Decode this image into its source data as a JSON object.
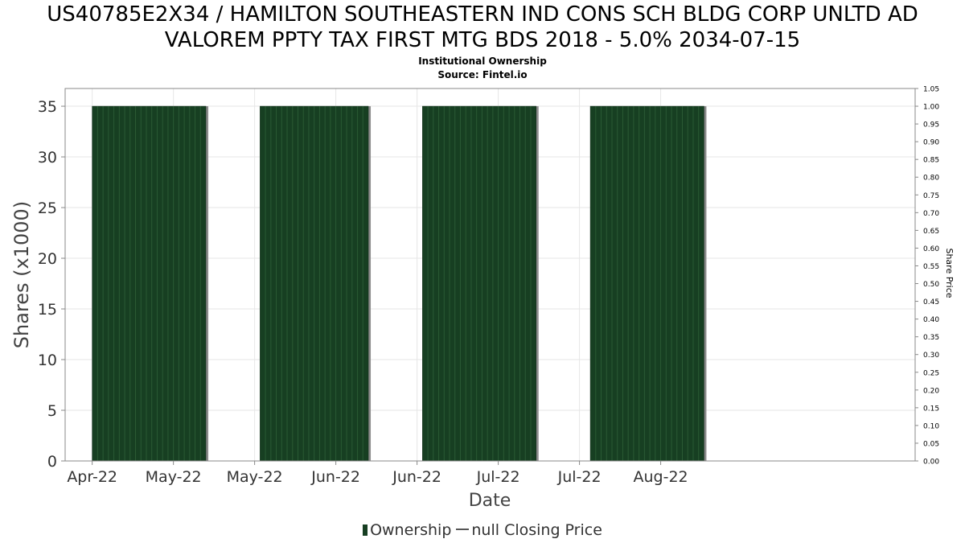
{
  "header": {
    "title_line1": "US40785E2X34 / HAMILTON SOUTHEASTERN IND CONS SCH BLDG CORP UNLTD AD",
    "title_line2": "VALOREM PPTY TAX FIRST MTG BDS 2018 - 5.0% 2034-07-15",
    "subtitle": "Institutional Ownership",
    "source": "Source: Fintel.io"
  },
  "colors": {
    "bar": "#173f22",
    "bar_stripe": "#2a5a34",
    "bar_shadow": "#8a8a8a",
    "grid": "#e6e6e6",
    "axis": "#888888"
  },
  "chart_data": {
    "type": "bar",
    "xlabel": "Date",
    "ylabel": "Shares (x1000)",
    "y2label": "Share Price",
    "ylim": [
      0,
      36.75
    ],
    "y2lim": [
      0,
      1.05
    ],
    "y_ticks": [
      0,
      5,
      10,
      15,
      20,
      25,
      30,
      35
    ],
    "y2_ticks": [
      "0.00",
      "0.05",
      "0.10",
      "0.15",
      "0.20",
      "0.25",
      "0.30",
      "0.35",
      "0.40",
      "0.45",
      "0.50",
      "0.55",
      "0.60",
      "0.65",
      "0.70",
      "0.75",
      "0.80",
      "0.85",
      "0.90",
      "0.95",
      "1.00",
      "1.05"
    ],
    "x_ticks": [
      "Apr-22",
      "May-22",
      "May-22",
      "Jun-22",
      "Jun-22",
      "Jul-22",
      "Jul-22",
      "Aug-22"
    ],
    "x_range": [
      "2022-03-27",
      "2022-08-31"
    ],
    "x_tick_dates": [
      "2022-04-01",
      "2022-04-16",
      "2022-05-01",
      "2022-05-16",
      "2022-05-31",
      "2022-06-15",
      "2022-06-30",
      "2022-07-15"
    ],
    "grid": true,
    "legend_position": "bottom",
    "series": [
      {
        "name": "Ownership",
        "values": [
          {
            "start": "2022-04-01",
            "end": "2022-04-22",
            "value": 35
          },
          {
            "start": "2022-05-02",
            "end": "2022-05-22",
            "value": 35
          },
          {
            "start": "2022-06-01",
            "end": "2022-06-22",
            "value": 35
          },
          {
            "start": "2022-07-02",
            "end": "2022-07-23",
            "value": 35
          }
        ]
      },
      {
        "name": "null Closing Price",
        "values": []
      }
    ]
  }
}
